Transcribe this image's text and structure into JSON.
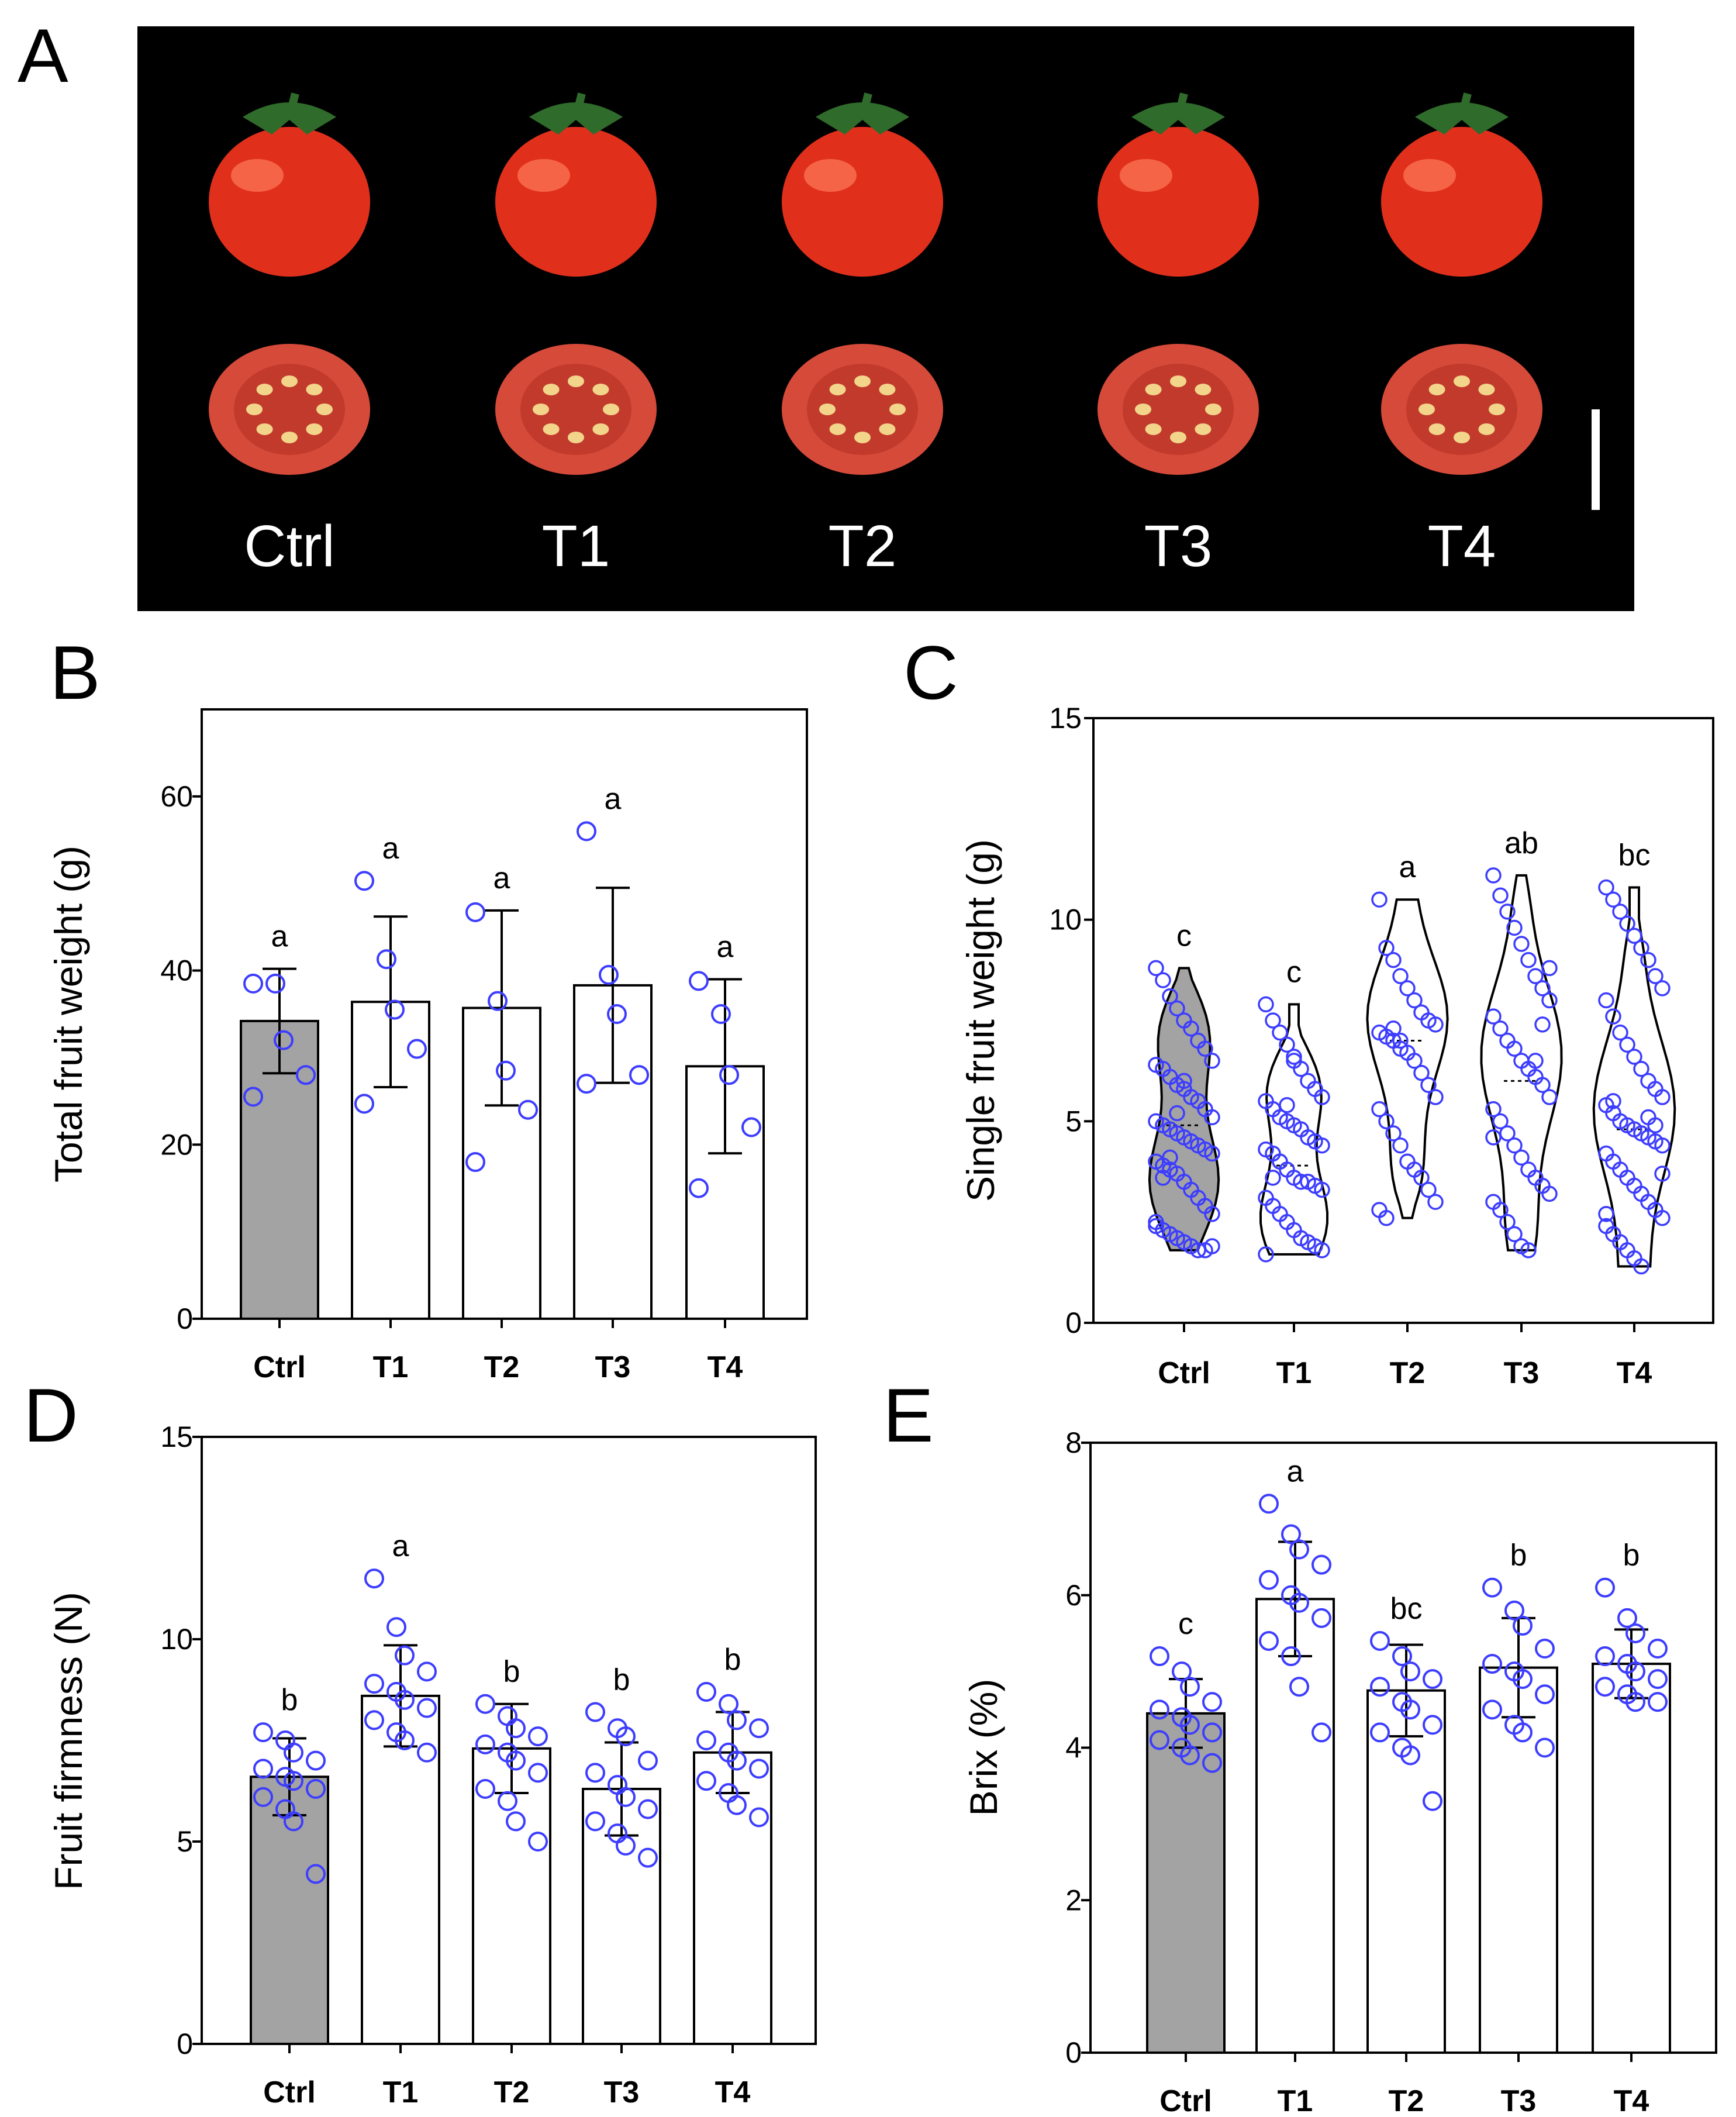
{
  "colors": {
    "ctrl_bar": "#a3a3a3",
    "bar": "#ffffff",
    "point": "#3d3dff",
    "axis": "#000000",
    "photo_bg": "#000000",
    "tomato": "#e0301c",
    "tomato_highlight": "#ff7b5a",
    "sepal": "#2f6b2b",
    "slice_flesh": "#d64a3a",
    "seed": "#f2d58a"
  },
  "panel_a": {
    "letter": "A",
    "labels": [
      "Ctrl",
      "T1",
      "T2",
      "T3",
      "T4"
    ]
  },
  "chart_data": [
    {
      "panel": "B",
      "type": "bar",
      "title": "",
      "xlabel": "",
      "ylabel": "Total fruit weight (g)",
      "ylim": [
        0,
        70
      ],
      "yticks": [
        0,
        20,
        40,
        60
      ],
      "categories": [
        "Ctrl",
        "T1",
        "T2",
        "T3",
        "T4"
      ],
      "values": [
        34.2,
        36.4,
        35.7,
        38.3,
        29.0
      ],
      "errors": [
        6.0,
        9.8,
        11.2,
        11.2,
        10.0
      ],
      "letters": [
        "a",
        "a",
        "a",
        "a",
        "a"
      ],
      "points": [
        [
          38.5,
          38.5,
          32.0,
          28.0,
          25.5
        ],
        [
          50.3,
          41.3,
          35.5,
          31.0,
          24.7
        ],
        [
          46.7,
          36.5,
          28.5,
          24.0,
          18.0
        ],
        [
          56.0,
          39.5,
          35.0,
          28.0,
          27.0
        ],
        [
          38.8,
          35.0,
          28.0,
          22.0,
          15.0
        ]
      ],
      "highlight_index": 0
    },
    {
      "panel": "C",
      "type": "violin",
      "title": "",
      "xlabel": "",
      "ylabel": "Single fruit weight (g)",
      "ylim": [
        0,
        15
      ],
      "yticks": [
        0,
        5,
        10,
        15
      ],
      "categories": [
        "Ctrl",
        "T1",
        "T2",
        "T3",
        "T4"
      ],
      "ranges": [
        [
          1.8,
          8.8
        ],
        [
          1.7,
          7.9
        ],
        [
          2.6,
          10.5
        ],
        [
          1.8,
          11.1
        ],
        [
          1.4,
          10.8
        ]
      ],
      "medians": [
        4.9,
        3.9,
        7.0,
        6.0,
        4.8
      ],
      "letters": [
        "c",
        "c",
        "a",
        "ab",
        "bc"
      ],
      "points": [
        [
          8.8,
          8.5,
          8.1,
          7.8,
          7.5,
          7.3,
          7.0,
          6.8,
          6.5,
          6.4,
          6.3,
          6.1,
          5.9,
          5.8,
          5.6,
          5.5,
          5.3,
          5.1,
          5.0,
          4.9,
          4.8,
          4.7,
          4.6,
          4.5,
          4.4,
          4.3,
          4.2,
          4.0,
          3.9,
          3.8,
          3.7,
          3.5,
          3.3,
          3.1,
          2.9,
          2.7,
          2.5,
          2.3,
          2.2,
          2.1,
          2.0,
          1.9,
          1.8,
          1.8,
          1.9,
          2.4,
          3.6,
          4.1,
          5.2,
          6.0
        ],
        [
          7.9,
          7.5,
          7.2,
          6.9,
          6.6,
          6.3,
          6.0,
          5.8,
          5.6,
          5.5,
          5.3,
          5.1,
          5.0,
          4.9,
          4.8,
          4.6,
          4.5,
          4.4,
          4.3,
          4.2,
          4.0,
          3.8,
          3.6,
          3.5,
          3.5,
          3.4,
          3.3,
          3.1,
          2.9,
          2.7,
          2.5,
          2.3,
          2.1,
          2.0,
          1.9,
          1.8,
          1.7,
          3.6,
          4.0,
          5.4,
          6.5
        ],
        [
          10.5,
          9.3,
          9.0,
          8.6,
          8.3,
          8.0,
          7.7,
          7.5,
          7.4,
          7.2,
          7.1,
          7.0,
          6.8,
          6.7,
          6.5,
          6.2,
          5.9,
          5.6,
          5.3,
          5.0,
          4.7,
          4.4,
          4.0,
          3.8,
          3.6,
          3.3,
          3.0,
          2.8,
          2.6,
          7.3,
          7.0
        ],
        [
          11.1,
          10.6,
          10.2,
          9.8,
          9.4,
          9.0,
          8.6,
          8.3,
          8.0,
          7.6,
          7.3,
          7.0,
          6.8,
          6.5,
          6.3,
          6.1,
          5.9,
          5.6,
          5.3,
          5.0,
          4.7,
          4.4,
          4.1,
          3.8,
          3.6,
          3.4,
          3.2,
          3.0,
          2.8,
          2.5,
          2.2,
          1.9,
          1.8,
          6.5,
          7.4,
          8.8,
          4.6
        ],
        [
          10.8,
          10.5,
          10.2,
          9.9,
          9.6,
          9.3,
          9.0,
          8.6,
          8.3,
          8.0,
          7.6,
          7.2,
          6.9,
          6.6,
          6.3,
          6.0,
          5.8,
          5.6,
          5.4,
          5.2,
          5.0,
          4.9,
          4.8,
          4.7,
          4.6,
          4.5,
          4.4,
          4.2,
          4.0,
          3.8,
          3.6,
          3.4,
          3.2,
          3.0,
          2.8,
          2.6,
          2.4,
          2.2,
          2.0,
          1.8,
          1.6,
          1.4,
          5.1,
          4.9,
          3.7,
          2.7,
          5.5
        ]
      ],
      "highlight_index": 0
    },
    {
      "panel": "D",
      "type": "bar",
      "title": "",
      "xlabel": "",
      "ylabel": "Fruit firmness (N)",
      "ylim": [
        0,
        15
      ],
      "yticks": [
        0,
        5,
        10,
        15
      ],
      "categories": [
        "Ctrl",
        "T1",
        "T2",
        "T3",
        "T4"
      ],
      "values": [
        6.6,
        8.6,
        7.3,
        6.3,
        7.2
      ],
      "errors": [
        0.95,
        1.25,
        1.1,
        1.15,
        1.0
      ],
      "letters": [
        "b",
        "a",
        "b",
        "b",
        "b"
      ],
      "points": [
        [
          7.7,
          7.5,
          7.2,
          7.0,
          6.8,
          6.6,
          6.5,
          6.3,
          6.1,
          5.8,
          5.5,
          4.2
        ],
        [
          11.5,
          10.3,
          9.6,
          9.2,
          8.9,
          8.7,
          8.5,
          8.3,
          8.0,
          7.7,
          7.5,
          7.2
        ],
        [
          8.4,
          8.1,
          7.8,
          7.6,
          7.4,
          7.2,
          7.0,
          6.7,
          6.3,
          6.0,
          5.5,
          5.0
        ],
        [
          8.2,
          7.8,
          7.6,
          7.0,
          6.7,
          6.4,
          6.1,
          5.8,
          5.5,
          5.2,
          4.9,
          4.6
        ],
        [
          8.7,
          8.4,
          8.0,
          7.8,
          7.5,
          7.2,
          7.0,
          6.8,
          6.5,
          6.2,
          5.9,
          5.6
        ]
      ],
      "highlight_index": 0
    },
    {
      "panel": "E",
      "type": "bar",
      "title": "",
      "xlabel": "",
      "ylabel": "Brix (%)",
      "ylim": [
        0,
        8
      ],
      "yticks": [
        0,
        2,
        4,
        6,
        8
      ],
      "categories": [
        "Ctrl",
        "T1",
        "T2",
        "T3",
        "T4"
      ],
      "values": [
        4.45,
        5.95,
        4.75,
        5.05,
        5.1
      ],
      "errors": [
        0.45,
        0.75,
        0.6,
        0.65,
        0.45
      ],
      "letters": [
        "c",
        "a",
        "bc",
        "b",
        "b"
      ],
      "points": [
        [
          5.2,
          5.0,
          4.8,
          4.6,
          4.5,
          4.4,
          4.3,
          4.2,
          4.1,
          4.0,
          3.9,
          3.8
        ],
        [
          7.2,
          6.8,
          6.6,
          6.4,
          6.2,
          6.0,
          5.9,
          5.7,
          5.4,
          5.2,
          4.8,
          4.2
        ],
        [
          5.4,
          5.2,
          5.0,
          4.9,
          4.8,
          4.6,
          4.5,
          4.3,
          4.2,
          4.0,
          3.9,
          3.3
        ],
        [
          6.1,
          5.8,
          5.6,
          5.3,
          5.1,
          5.0,
          4.9,
          4.7,
          4.5,
          4.3,
          4.2,
          4.0
        ],
        [
          6.1,
          5.7,
          5.5,
          5.3,
          5.2,
          5.1,
          5.0,
          4.9,
          4.8,
          4.7,
          4.6,
          4.6
        ]
      ],
      "highlight_index": 0
    }
  ]
}
